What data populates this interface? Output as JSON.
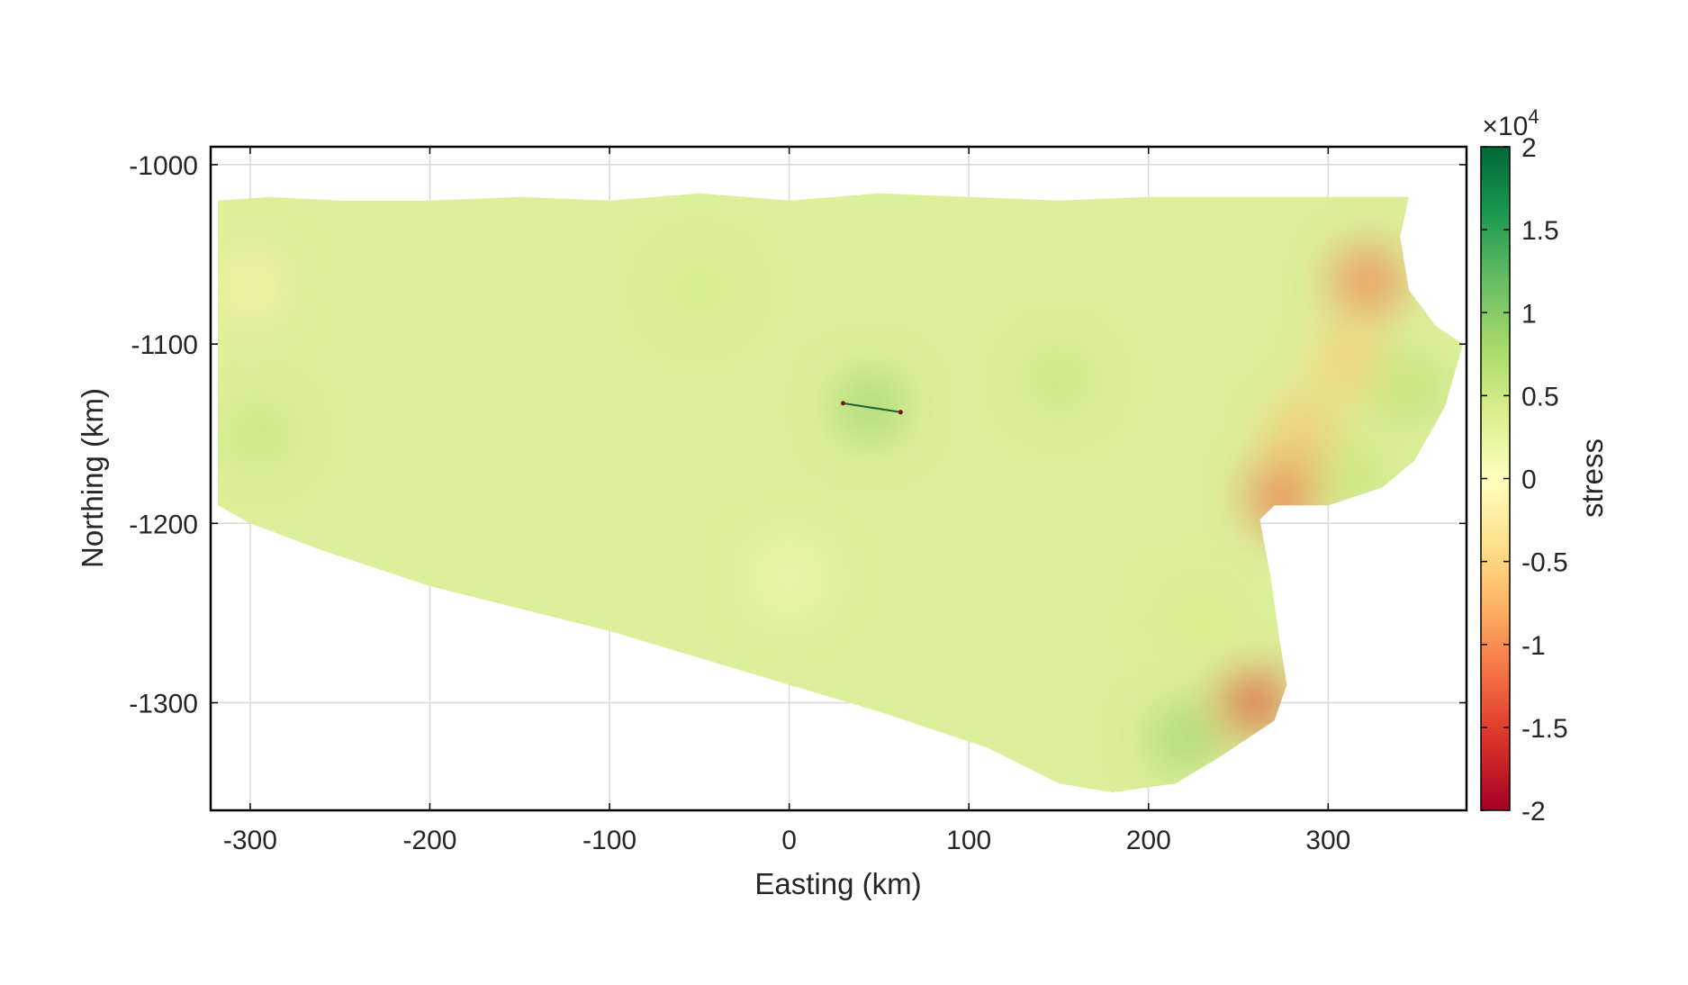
{
  "chart_data": {
    "type": "heatmap",
    "title": "",
    "xlabel": "Easting (km)",
    "ylabel": "Northing (km)",
    "xlim": [
      -322,
      377
    ],
    "ylim": [
      -1360,
      -990
    ],
    "xticks": [
      -300,
      -200,
      -100,
      0,
      100,
      200,
      300
    ],
    "xtick_labels": [
      "-300",
      "-200",
      "-100",
      "0",
      "100",
      "200",
      "300"
    ],
    "yticks": [
      -1000,
      -1100,
      -1200,
      -1300
    ],
    "ytick_labels": [
      "-1000",
      "-1100",
      "-1200",
      "-1300"
    ],
    "grid": true,
    "colormap": "RdYlGn",
    "colorbar": {
      "label": "stress",
      "multiplier": "×10",
      "exponent": "4",
      "range": [
        -2,
        2
      ],
      "ticks": [
        2,
        1.5,
        1,
        0.5,
        0,
        -0.5,
        -1,
        -1.5,
        -2
      ],
      "tick_labels": [
        "2",
        "1.5",
        "1",
        "0.5",
        "0",
        "-0.5",
        "-1",
        "-1.5",
        "-2"
      ],
      "stops": [
        "#a50026",
        "#d73027",
        "#f46d43",
        "#fdae61",
        "#fee08b",
        "#ffffbf",
        "#d9ef8b",
        "#a6d96a",
        "#66bd63",
        "#1a9850",
        "#006837"
      ]
    },
    "domain_outline": [
      [
        -318,
        -1020
      ],
      [
        -290,
        -1018
      ],
      [
        -250,
        -1020
      ],
      [
        -200,
        -1020
      ],
      [
        -150,
        -1018
      ],
      [
        -100,
        -1020
      ],
      [
        -50,
        -1016
      ],
      [
        0,
        -1020
      ],
      [
        50,
        -1016
      ],
      [
        100,
        -1018
      ],
      [
        150,
        -1020
      ],
      [
        200,
        -1018
      ],
      [
        250,
        -1018
      ],
      [
        300,
        -1018
      ],
      [
        330,
        -1018
      ],
      [
        345,
        -1018
      ],
      [
        340,
        -1040
      ],
      [
        345,
        -1070
      ],
      [
        360,
        -1090
      ],
      [
        375,
        -1100
      ],
      [
        365,
        -1135
      ],
      [
        348,
        -1165
      ],
      [
        330,
        -1180
      ],
      [
        300,
        -1190
      ],
      [
        270,
        -1190
      ],
      [
        262,
        -1198
      ],
      [
        268,
        -1230
      ],
      [
        273,
        -1265
      ],
      [
        277,
        -1290
      ],
      [
        270,
        -1310
      ],
      [
        240,
        -1330
      ],
      [
        215,
        -1345
      ],
      [
        180,
        -1350
      ],
      [
        150,
        -1345
      ],
      [
        110,
        -1325
      ],
      [
        50,
        -1305
      ],
      [
        0,
        -1290
      ],
      [
        -100,
        -1260
      ],
      [
        -200,
        -1235
      ],
      [
        -260,
        -1215
      ],
      [
        -300,
        -1200
      ],
      [
        -318,
        -1190
      ]
    ],
    "stress_features": [
      {
        "x": -300,
        "y": -1068,
        "value": -0.2
      },
      {
        "x": -295,
        "y": -1150,
        "value": 0.6
      },
      {
        "x": 45,
        "y": -1135,
        "value": 0.9
      },
      {
        "x": 150,
        "y": -1120,
        "value": 0.6
      },
      {
        "x": -50,
        "y": -1070,
        "value": 0.5
      },
      {
        "x": 322,
        "y": -1065,
        "value": -1.2
      },
      {
        "x": 310,
        "y": -1110,
        "value": -0.6
      },
      {
        "x": 345,
        "y": -1125,
        "value": 0.7
      },
      {
        "x": 285,
        "y": -1150,
        "value": -0.7
      },
      {
        "x": 275,
        "y": -1185,
        "value": -1.3
      },
      {
        "x": 315,
        "y": -1175,
        "value": 0.6
      },
      {
        "x": 258,
        "y": -1300,
        "value": -1.5
      },
      {
        "x": 220,
        "y": -1320,
        "value": 0.9
      },
      {
        "x": 230,
        "y": -1255,
        "value": 0.4
      },
      {
        "x": 0,
        "y": -1230,
        "value": 0.1
      }
    ],
    "fault_segment": [
      [
        30,
        -1133
      ],
      [
        62,
        -1138
      ]
    ]
  }
}
